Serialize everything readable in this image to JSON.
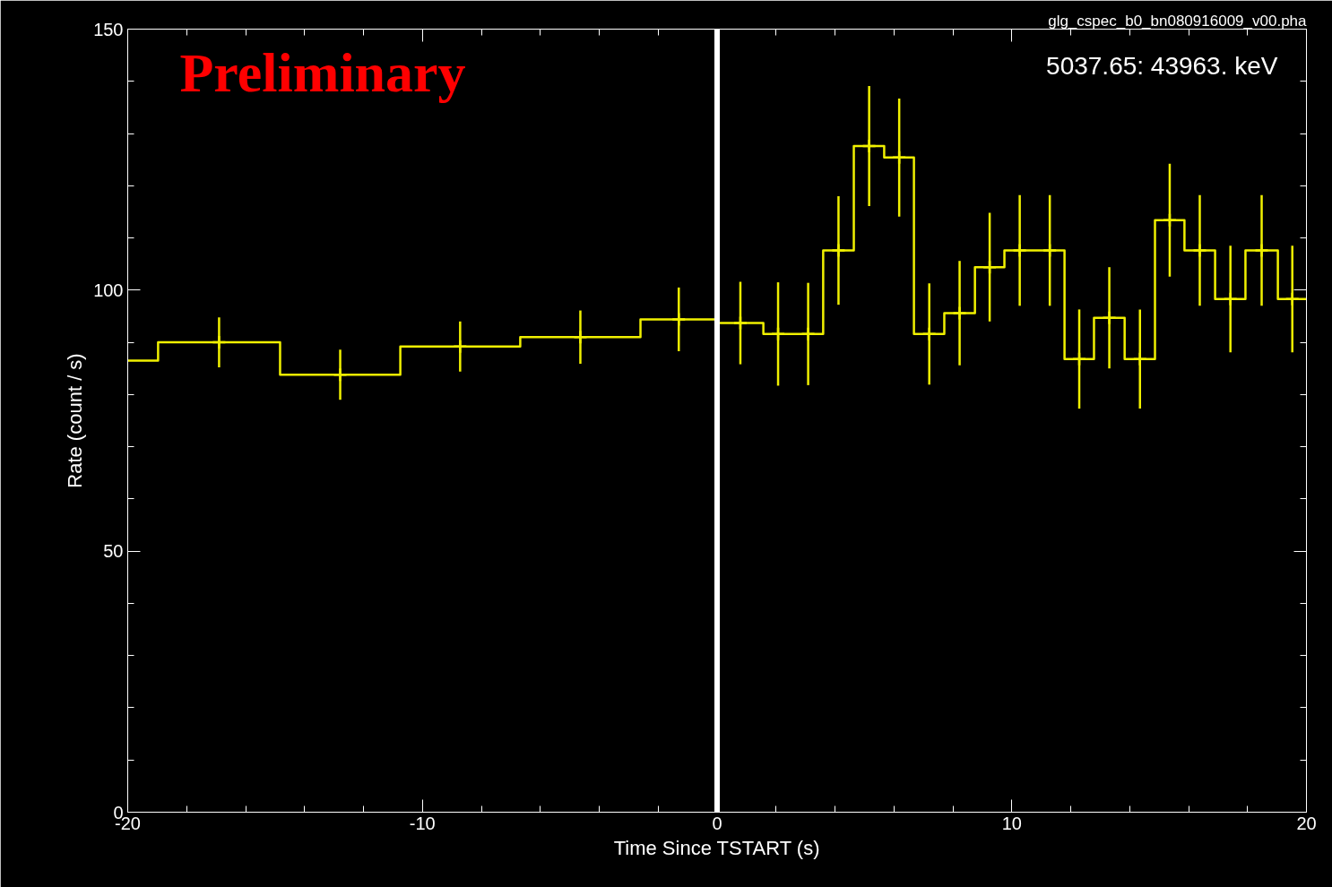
{
  "chart_data": {
    "type": "histogram",
    "xlabel": "Time Since TSTART (s)",
    "ylabel": "Rate (count / s)",
    "annotations": [
      "Preliminary",
      "5037.65: 43963. keV",
      "glg_cspec_b0_bn080916009_v00.pha"
    ],
    "bins": [
      -20,
      -18.97,
      -14.83,
      -10.75,
      -6.68,
      -2.6,
      0,
      1.57,
      2.57,
      3.6,
      4.64,
      5.67,
      6.68,
      7.71,
      8.75,
      9.75,
      10.78,
      11.79,
      12.79,
      13.83,
      14.86,
      15.86,
      16.9,
      17.93,
      19.03,
      20
    ],
    "series": [
      {
        "color": "#f0f000",
        "values": [
          86.5,
          90.0,
          83.8,
          89.2,
          91.0,
          94.4,
          93.7,
          91.6,
          91.6,
          107.6,
          127.6,
          125.4,
          91.6,
          95.6,
          104.4,
          107.6,
          107.6,
          86.8,
          94.7,
          86.8,
          113.4,
          107.6,
          98.3,
          107.6,
          98.3
        ]
      },
      {
        "type": "scatter",
        "color": "#f0f000",
        "marker": "cross",
        "x": [
          -16.9,
          -12.79,
          -8.72,
          -4.64,
          -1.3,
          0.79,
          2.07,
          3.09,
          4.12,
          5.16,
          6.18,
          7.2,
          8.23,
          9.25,
          10.27,
          11.29,
          12.29,
          13.31,
          14.35,
          15.36,
          16.38,
          17.42,
          18.48,
          19.52
        ],
        "values": [
          90.0,
          83.8,
          89.2,
          91.0,
          94.4,
          93.7,
          91.6,
          91.6,
          107.6,
          127.6,
          125.4,
          91.6,
          95.6,
          104.4,
          107.6,
          107.6,
          86.8,
          94.7,
          86.8,
          113.4,
          107.6,
          98.3,
          107.6,
          98.3
        ],
        "errors": [
          4.8,
          4.8,
          4.8,
          5.1,
          6.1,
          7.9,
          9.9,
          9.8,
          10.4,
          11.5,
          11.3,
          9.7,
          10.0,
          10.4,
          10.6,
          10.6,
          9.5,
          9.7,
          9.5,
          10.8,
          10.6,
          10.2,
          10.6,
          10.2
        ]
      }
    ],
    "xlim": [
      -20,
      20
    ],
    "xticks": [
      -20,
      -10,
      0,
      10,
      20
    ],
    "ylim": [
      0,
      150
    ],
    "yticks": [
      0,
      50,
      100,
      150
    ],
    "ref_lines": [
      {
        "axis": "x",
        "value": 0,
        "color": "#ffffff"
      }
    ],
    "grid": false
  }
}
